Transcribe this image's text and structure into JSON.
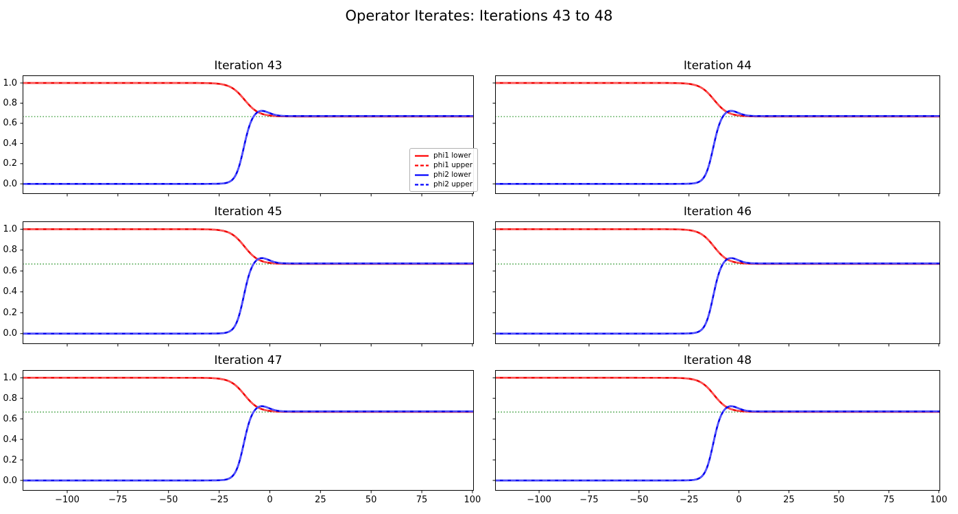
{
  "figure": {
    "title": "Operator Iterates: Iterations 43 to 48",
    "background": "#ffffff"
  },
  "subplots": [
    {
      "title": "Iteration 43"
    },
    {
      "title": "Iteration 44"
    },
    {
      "title": "Iteration 45"
    },
    {
      "title": "Iteration 46"
    },
    {
      "title": "Iteration 47"
    },
    {
      "title": "Iteration 48"
    }
  ],
  "axes": {
    "xlim": [
      -122,
      100.7
    ],
    "ylim": [
      -0.1,
      1.075
    ],
    "x_ticks": [
      -100,
      -75,
      -50,
      -25,
      0,
      25,
      50,
      75,
      100
    ],
    "x_tick_labels": [
      "−100",
      "−75",
      "−50",
      "−25",
      "0",
      "25",
      "50",
      "75",
      "100"
    ],
    "y_ticks": [
      0.0,
      0.2,
      0.4,
      0.6,
      0.8,
      1.0
    ],
    "y_tick_labels": [
      "0.0",
      "0.2",
      "0.4",
      "0.6",
      "0.8",
      "1.0"
    ]
  },
  "legend": {
    "entries": [
      {
        "label": "phi1 lower",
        "color": "#ff0000",
        "style": "solid"
      },
      {
        "label": "phi1 upper",
        "color": "#ff0000",
        "style": "dashed"
      },
      {
        "label": "phi2 lower",
        "color": "#0000ff",
        "style": "solid"
      },
      {
        "label": "phi2 upper",
        "color": "#0000ff",
        "style": "dashed"
      }
    ]
  },
  "reference_line": {
    "value": 0.6667,
    "color": "#008000",
    "style": "dotted",
    "meaning": "convergence value 2/3"
  },
  "render_colors": {
    "red_solid": "#ee0000",
    "red_dash_overlay": "#ff5a5a",
    "blue_solid": "#0000ee",
    "blue_dash_overlay": "#5a5aff",
    "green_reference": "#008000",
    "spine": "#000000"
  },
  "chart_data": {
    "type": "line",
    "title": "Operator Iterates: Iterations 43 to 48",
    "subplot_titles": [
      "Iteration 43",
      "Iteration 44",
      "Iteration 45",
      "Iteration 46",
      "Iteration 47",
      "Iteration 48"
    ],
    "note": "All six subplots show visually identical converged iterates; phi upper curves coincide with phi lower curves (dashed over solid). Green dotted reference line at 2/3. Legend shown in first subplot only, center-right.",
    "xlabel": "",
    "ylabel": "",
    "xlim": [
      -122,
      100.7
    ],
    "ylim": [
      -0.1,
      1.075
    ],
    "grid": false,
    "legend_position": "center right of first subplot",
    "samples": {
      "x": [
        -120,
        -110,
        -100,
        -90,
        -80,
        -70,
        -60,
        -50,
        -40,
        -30,
        -20,
        -10,
        0,
        10,
        20,
        30,
        40,
        50,
        60,
        70,
        80,
        90,
        100
      ],
      "phi1": [
        1.0,
        1.0,
        1.0,
        1.0,
        1.0,
        1.0,
        1.0,
        1.0,
        1.0,
        0.998,
        0.965,
        0.777,
        0.677,
        0.669,
        0.668,
        0.668,
        0.668,
        0.668,
        0.668,
        0.668,
        0.668,
        0.668,
        0.668
      ],
      "phi2": [
        0.0,
        0.0,
        0.0,
        0.0,
        0.0,
        0.0,
        0.0,
        0.0,
        0.0,
        0.0,
        0.02,
        0.579,
        0.701,
        0.672,
        0.672,
        0.672,
        0.672,
        0.672,
        0.672,
        0.672,
        0.672,
        0.672,
        0.672
      ]
    },
    "series": [
      {
        "name": "phi1 lower",
        "color": "#ff0000",
        "style": "solid",
        "data": "phi1"
      },
      {
        "name": "phi1 upper",
        "color": "#ff0000",
        "style": "dashed",
        "data": "phi1"
      },
      {
        "name": "phi2 lower",
        "color": "#0000ff",
        "style": "solid",
        "data": "phi2"
      },
      {
        "name": "phi2 upper",
        "color": "#0000ff",
        "style": "dashed",
        "data": "phi2"
      }
    ],
    "curve_model": {
      "phi1": {
        "base": 0.668,
        "amp": 0.332,
        "center": -12.5,
        "width": 3.5
      },
      "phi2": {
        "amp": 0.672,
        "center": -13,
        "width": 2.0,
        "overshoot_amp": 0.06,
        "overshoot_center": -5,
        "overshoot_width": 6
      }
    }
  }
}
